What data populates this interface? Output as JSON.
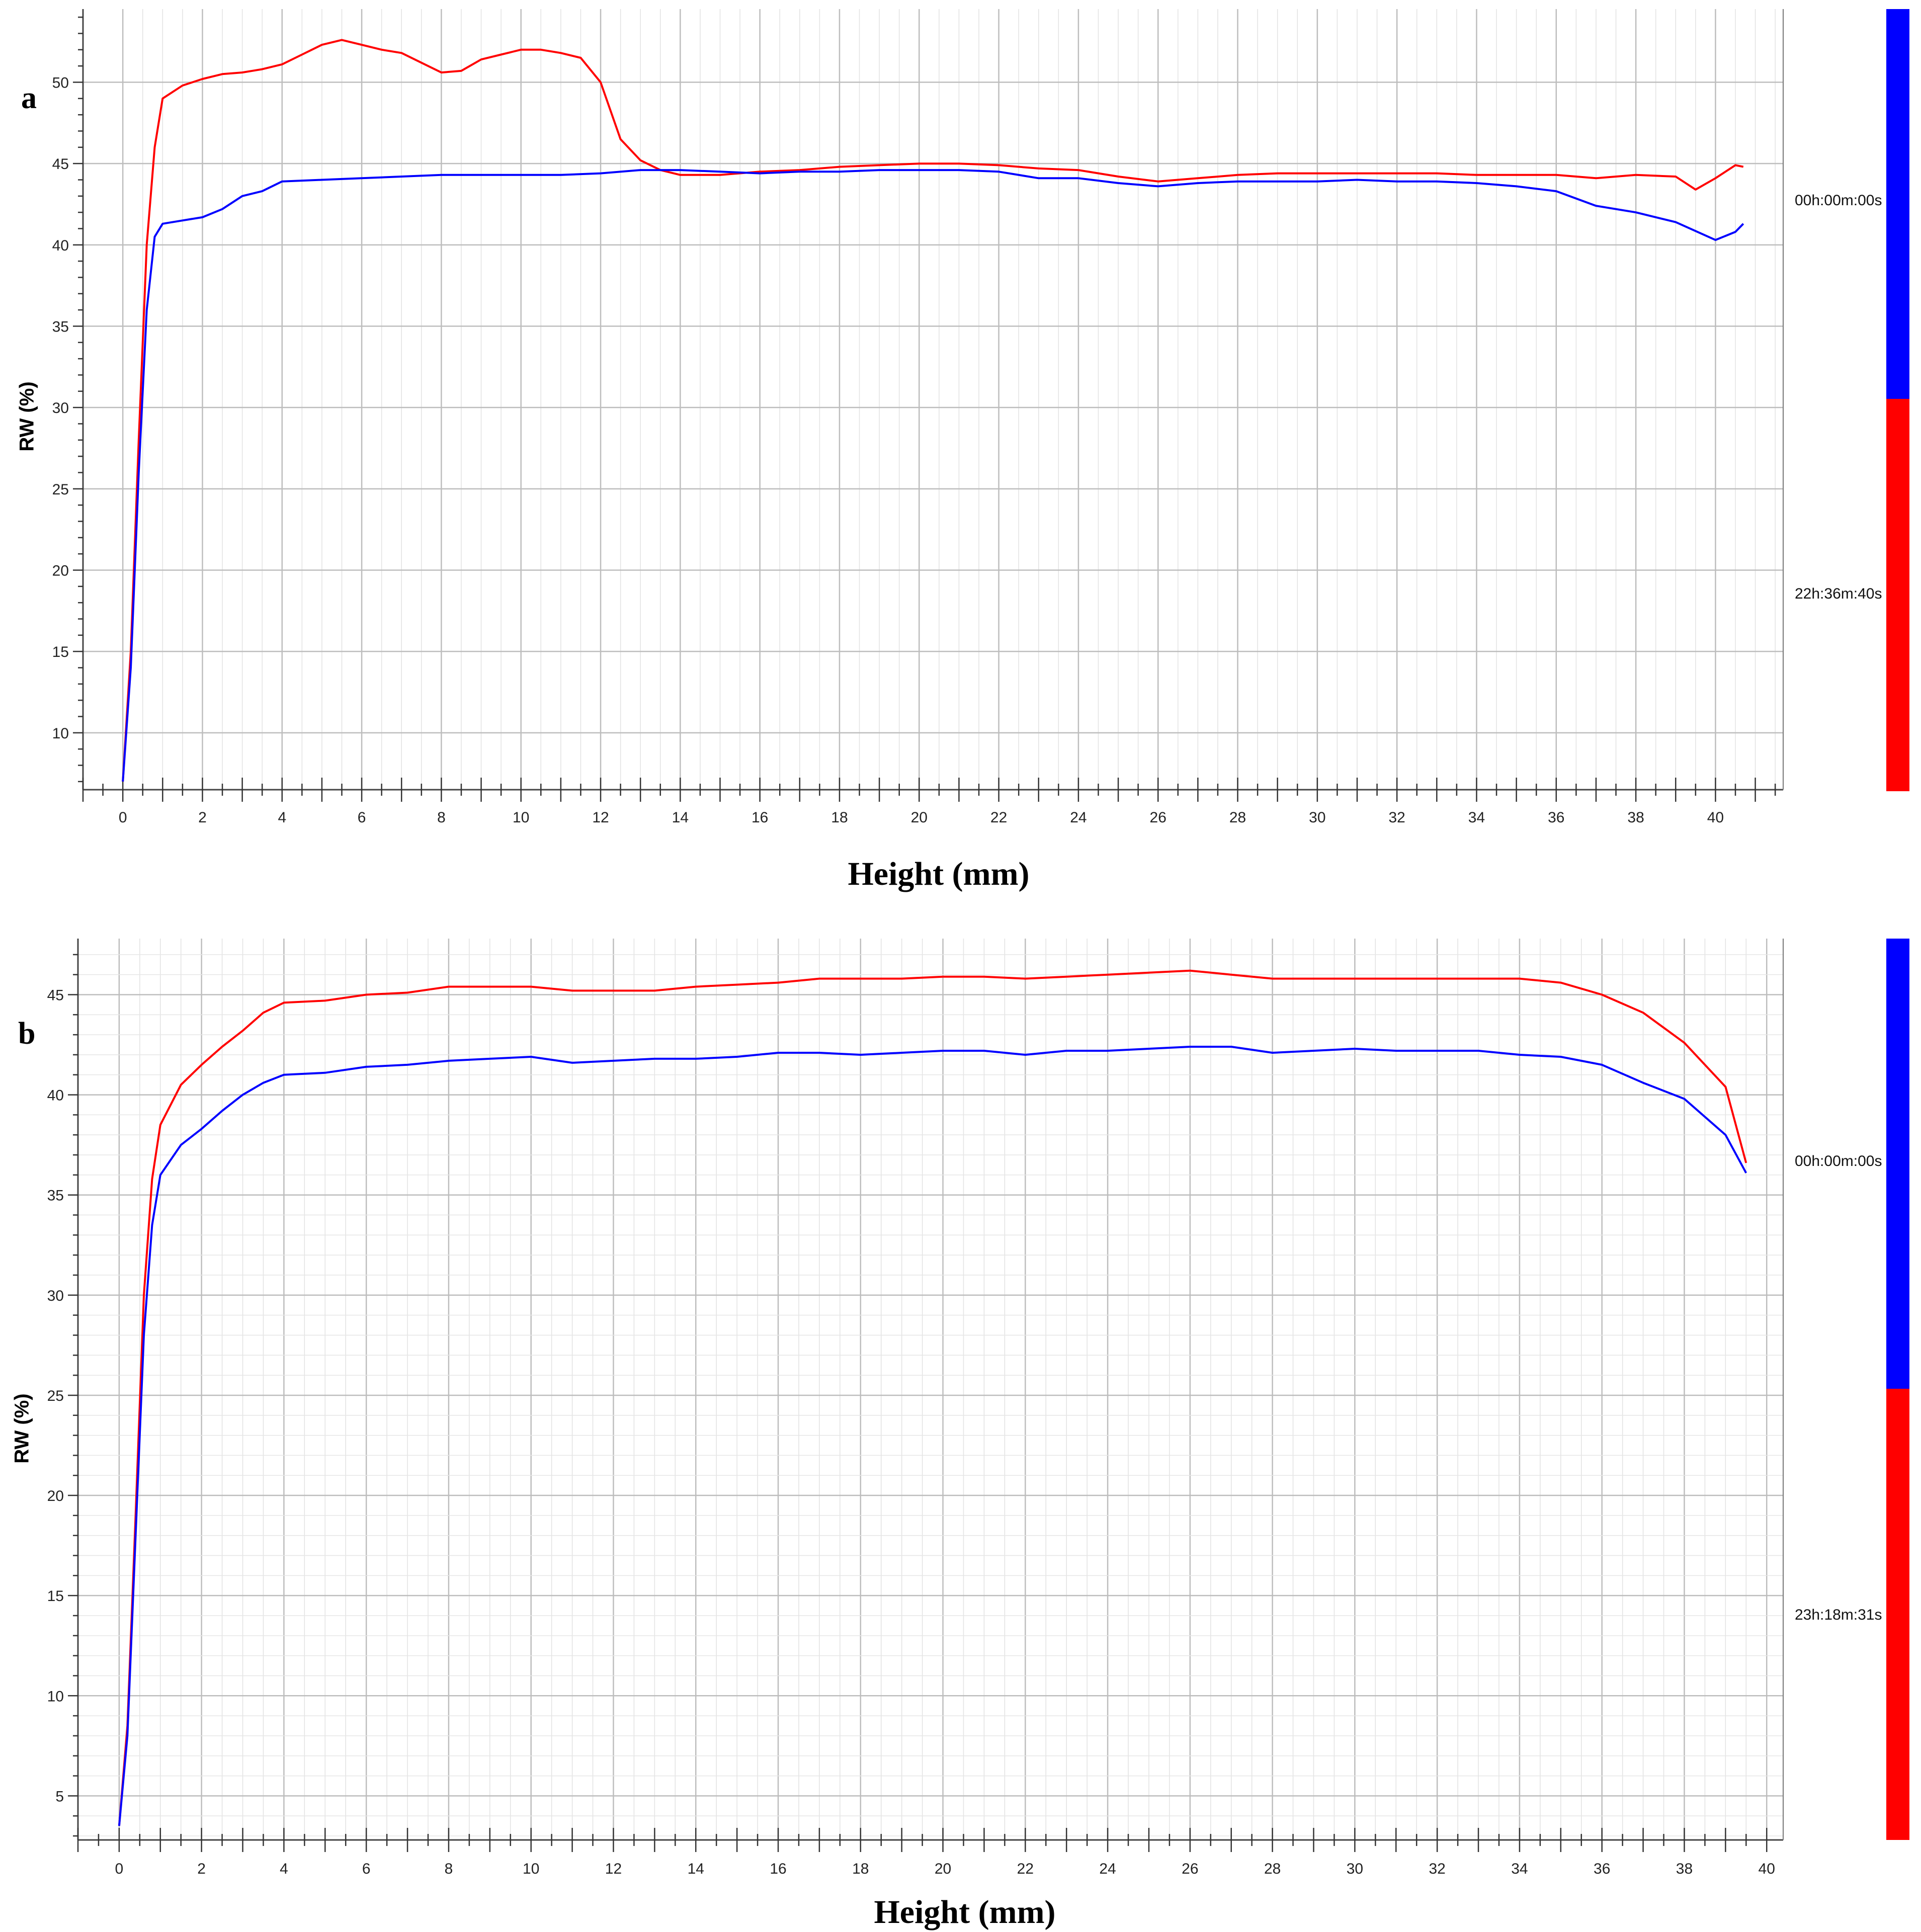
{
  "chart_data": [
    {
      "type": "line",
      "panel_label": "a",
      "xlabel": "Height (mm)",
      "ylabel": "RW (%)",
      "xlim": [
        -1,
        41.7
      ],
      "ylim": [
        6.5,
        54.5
      ],
      "xticks": [
        "0",
        "2",
        "4",
        "6",
        "8",
        "10",
        "12",
        "14",
        "16",
        "18",
        "20",
        "22",
        "24",
        "26",
        "28",
        "30",
        "32",
        "34",
        "36",
        "38",
        "40"
      ],
      "yticks": [
        "10",
        "15",
        "20",
        "25",
        "30",
        "35",
        "40",
        "45",
        "50"
      ],
      "grid": true,
      "legend_position": "right",
      "series": [
        {
          "name": "00h:00m:00s",
          "color": "#0000ff",
          "x": [
            0,
            0.2,
            0.4,
            0.6,
            0.8,
            1,
            1.5,
            2,
            2.5,
            3,
            3.5,
            4,
            5,
            6,
            7,
            8,
            9,
            10,
            11,
            12,
            13,
            14,
            15,
            16,
            17,
            18,
            19,
            20,
            21,
            22,
            23,
            24,
            25,
            26,
            27,
            28,
            29,
            30,
            31,
            32,
            33,
            34,
            35,
            36,
            37,
            38,
            39,
            40,
            40.5,
            40.7
          ],
          "y": [
            7,
            14,
            26,
            36,
            40.5,
            41.3,
            41.5,
            41.7,
            42.2,
            43,
            43.3,
            43.9,
            44,
            44.1,
            44.2,
            44.3,
            44.3,
            44.3,
            44.3,
            44.4,
            44.6,
            44.6,
            44.5,
            44.4,
            44.5,
            44.5,
            44.6,
            44.6,
            44.6,
            44.5,
            44.1,
            44.1,
            43.8,
            43.6,
            43.8,
            43.9,
            43.9,
            43.9,
            44.0,
            43.9,
            43.9,
            43.8,
            43.6,
            43.3,
            42.4,
            42.0,
            41.4,
            40.3,
            40.8,
            41.3
          ]
        },
        {
          "name": "22h:36m:40s",
          "color": "#ff0000",
          "x": [
            0,
            0.2,
            0.4,
            0.6,
            0.8,
            1,
            1.5,
            2,
            2.5,
            3,
            3.5,
            4,
            4.5,
            5,
            5.5,
            6,
            6.5,
            7,
            7.5,
            8,
            8.5,
            9,
            9.5,
            10,
            10.5,
            11,
            11.5,
            12,
            12.5,
            13,
            13.5,
            14,
            15,
            16,
            17,
            18,
            19,
            20,
            21,
            22,
            23,
            24,
            25,
            26,
            27,
            28,
            29,
            30,
            31,
            32,
            33,
            34,
            35,
            36,
            37,
            38,
            39,
            39.5,
            40,
            40.5,
            40.7
          ],
          "y": [
            7,
            15,
            28,
            40,
            46,
            49,
            49.8,
            50.2,
            50.5,
            50.6,
            50.8,
            51.1,
            51.7,
            52.3,
            52.6,
            52.3,
            52.0,
            51.8,
            51.2,
            50.6,
            50.7,
            51.4,
            51.7,
            52.0,
            52.0,
            51.8,
            51.5,
            50.0,
            46.5,
            45.2,
            44.6,
            44.3,
            44.3,
            44.5,
            44.6,
            44.8,
            44.9,
            45.0,
            45.0,
            44.9,
            44.7,
            44.6,
            44.2,
            43.9,
            44.1,
            44.3,
            44.4,
            44.4,
            44.4,
            44.4,
            44.4,
            44.3,
            44.3,
            44.3,
            44.1,
            44.3,
            44.2,
            43.4,
            44.1,
            44.9,
            44.8
          ]
        }
      ],
      "legend": [
        {
          "label": "00h:00m:00s",
          "color": "#0000ff"
        },
        {
          "label": "22h:36m:40s",
          "color": "#ff0000"
        }
      ]
    },
    {
      "type": "line",
      "panel_label": "b",
      "xlabel": "Height (mm)",
      "ylabel": "RW (%)",
      "xlim": [
        -1,
        40.4
      ],
      "ylim": [
        2.8,
        47.8
      ],
      "xticks": [
        "0",
        "2",
        "4",
        "6",
        "8",
        "10",
        "12",
        "14",
        "16",
        "18",
        "20",
        "22",
        "24",
        "26",
        "28",
        "30",
        "32",
        "34",
        "36",
        "38",
        "40"
      ],
      "yticks": [
        "5",
        "10",
        "15",
        "20",
        "25",
        "30",
        "35",
        "40",
        "45"
      ],
      "grid": true,
      "legend_position": "right",
      "series": [
        {
          "name": "00h:00m:00s",
          "color": "#0000ff",
          "x": [
            0,
            0.2,
            0.4,
            0.6,
            0.8,
            1,
            1.5,
            2,
            2.5,
            3,
            3.5,
            4,
            5,
            6,
            7,
            8,
            9,
            10,
            11,
            12,
            13,
            14,
            15,
            16,
            17,
            18,
            19,
            20,
            21,
            22,
            23,
            24,
            25,
            26,
            27,
            28,
            29,
            30,
            31,
            32,
            33,
            34,
            35,
            36,
            37,
            38,
            39,
            39.5
          ],
          "y": [
            3.5,
            8,
            18,
            28,
            33.5,
            36,
            37.5,
            38.3,
            39.2,
            40,
            40.6,
            41,
            41.1,
            41.4,
            41.5,
            41.7,
            41.8,
            41.9,
            41.6,
            41.7,
            41.8,
            41.8,
            41.9,
            42.1,
            42.1,
            42.0,
            42.1,
            42.2,
            42.2,
            42.0,
            42.2,
            42.2,
            42.3,
            42.4,
            42.4,
            42.1,
            42.2,
            42.3,
            42.2,
            42.2,
            42.2,
            42.0,
            41.9,
            41.5,
            40.6,
            39.8,
            38.0,
            36.1
          ]
        },
        {
          "name": "23h:18m:31s",
          "color": "#ff0000",
          "x": [
            0,
            0.2,
            0.4,
            0.6,
            0.8,
            1,
            1.5,
            2,
            2.5,
            3,
            3.5,
            4,
            5,
            6,
            7,
            8,
            9,
            10,
            11,
            12,
            13,
            14,
            15,
            16,
            17,
            18,
            19,
            20,
            21,
            22,
            23,
            24,
            25,
            26,
            27,
            28,
            29,
            30,
            31,
            32,
            33,
            34,
            35,
            36,
            37,
            38,
            39,
            39.5
          ],
          "y": [
            3.5,
            8.5,
            19,
            30,
            35.8,
            38.5,
            40.5,
            41.5,
            42.4,
            43.2,
            44.1,
            44.6,
            44.7,
            45.0,
            45.1,
            45.4,
            45.4,
            45.4,
            45.2,
            45.2,
            45.2,
            45.4,
            45.5,
            45.6,
            45.8,
            45.8,
            45.8,
            45.9,
            45.9,
            45.8,
            45.9,
            46.0,
            46.1,
            46.2,
            46.0,
            45.8,
            45.8,
            45.8,
            45.8,
            45.8,
            45.8,
            45.8,
            45.6,
            45.0,
            44.1,
            42.6,
            40.4,
            36.6
          ]
        }
      ],
      "legend": [
        {
          "label": "00h:00m:00s",
          "color": "#0000ff"
        },
        {
          "label": "23h:18m:31s",
          "color": "#ff0000"
        }
      ]
    }
  ]
}
